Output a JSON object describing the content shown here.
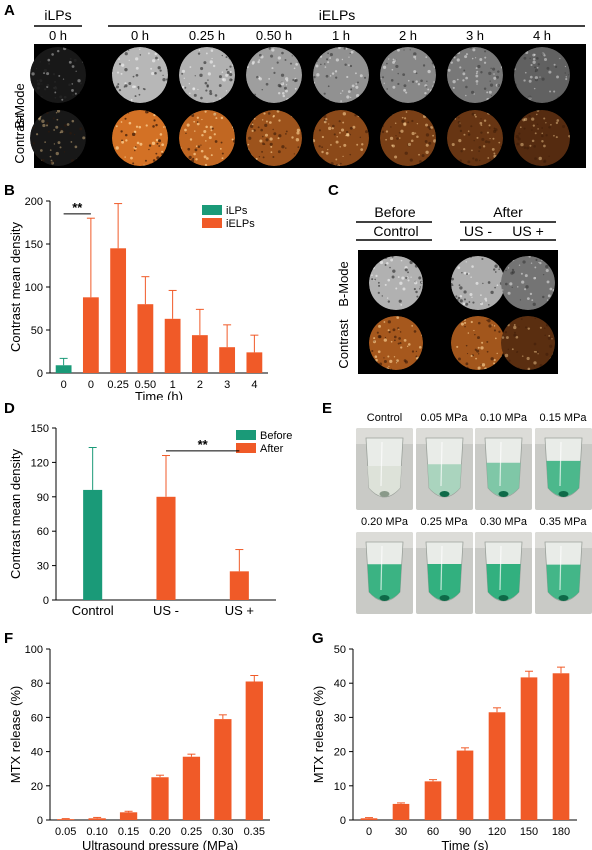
{
  "colors": {
    "green": "#1a9a78",
    "orange": "#f05a28",
    "black": "#000000",
    "mb": "#9a9a9a",
    "cw": "#e8a050",
    "cd": "#7a4218"
  },
  "panels": {
    "a": "A",
    "b": "B",
    "c": "C",
    "d": "D",
    "e": "E",
    "f": "F",
    "g": "G"
  },
  "panel_a": {
    "group_left": "iLPs",
    "group_right": "iELPs",
    "times": [
      "0 h",
      "0 h",
      "0.25 h",
      "0.50 h",
      "1 h",
      "2 h",
      "3 h",
      "4 h"
    ],
    "row_bmode": "B-Mode",
    "row_contrast": "Contrast",
    "bmode_level": [
      0.15,
      0.75,
      0.72,
      0.62,
      0.55,
      0.5,
      0.42,
      0.3
    ],
    "contrast_level": [
      0.15,
      0.95,
      0.85,
      0.65,
      0.55,
      0.45,
      0.35,
      0.25
    ]
  },
  "panel_c": {
    "header_before": "Before",
    "header_after": "After",
    "cols": [
      "Control",
      "US -",
      "US +"
    ],
    "row_bmode": "B-Mode",
    "row_contrast": "Contrast",
    "bmode_level": [
      0.72,
      0.7,
      0.4
    ],
    "contrast_level": [
      0.7,
      0.68,
      0.28
    ]
  },
  "panel_e": {
    "labels_top": [
      "Control",
      "0.05 MPa",
      "0.10 MPa",
      "0.15 MPa"
    ],
    "labels_bottom": [
      "0.20 MPa",
      "0.25 MPa",
      "0.30 MPa",
      "0.35 MPa"
    ],
    "green_level_top": [
      0.0,
      0.3,
      0.55,
      0.85
    ],
    "green_level_bottom": [
      0.95,
      1.0,
      1.0,
      0.9
    ]
  },
  "chart_data": [
    {
      "id": "B",
      "type": "bar",
      "categories": [
        "0",
        "0",
        "0.25",
        "0.50",
        "1",
        "2",
        "3",
        "4"
      ],
      "series": [
        {
          "name": "iLPs",
          "values": [
            9,
            null,
            null,
            null,
            null,
            null,
            null,
            null
          ],
          "errors": [
            8,
            null,
            null,
            null,
            null,
            null,
            null,
            null
          ]
        },
        {
          "name": "iELPs",
          "values": [
            null,
            88,
            145,
            80,
            63,
            44,
            30,
            24
          ],
          "errors": [
            null,
            92,
            52,
            32,
            33,
            30,
            26,
            20
          ]
        }
      ],
      "xlabel": "Time (h)",
      "ylabel": "Contrast mean density",
      "ylim": [
        0,
        200
      ],
      "yticks": [
        0,
        50,
        100,
        150,
        200
      ],
      "legend_position": "top-right",
      "annotations": [
        {
          "text": "**",
          "between": [
            "0",
            "0"
          ]
        }
      ]
    },
    {
      "id": "D",
      "type": "bar",
      "categories": [
        "Control",
        "US -",
        "US +"
      ],
      "series": [
        {
          "name": "Before",
          "values": [
            96,
            null,
            null
          ],
          "errors": [
            37,
            null,
            null
          ]
        },
        {
          "name": "After",
          "values": [
            null,
            90,
            25
          ],
          "errors": [
            null,
            36,
            19
          ]
        }
      ],
      "ylabel": "Contrast mean density",
      "ylim": [
        0,
        150
      ],
      "yticks": [
        0,
        30,
        60,
        90,
        120,
        150
      ],
      "legend_position": "top-right",
      "annotations": [
        {
          "text": "**",
          "between": [
            "US -",
            "US +"
          ]
        }
      ]
    },
    {
      "id": "F",
      "type": "bar",
      "categories": [
        "0.05",
        "0.10",
        "0.15",
        "0.20",
        "0.25",
        "0.30",
        "0.35"
      ],
      "values": [
        0.5,
        1,
        4.5,
        25,
        37,
        59,
        81
      ],
      "errors": [
        0.3,
        0.5,
        0.6,
        1.2,
        1.5,
        2.5,
        3.5
      ],
      "xlabel": "Ultrasound pressure (MPa)",
      "ylabel": "MTX release (%)",
      "ylim": [
        0,
        100
      ],
      "yticks": [
        0,
        20,
        40,
        60,
        80,
        100
      ]
    },
    {
      "id": "G",
      "type": "bar",
      "categories": [
        "0",
        "30",
        "60",
        "90",
        "120",
        "150",
        "180"
      ],
      "values": [
        0.5,
        4.7,
        11.3,
        20.3,
        31.5,
        41.7,
        42.9
      ],
      "errors": [
        0.2,
        0.3,
        0.5,
        0.8,
        1.3,
        1.8,
        1.8
      ],
      "xlabel": "Time (s)",
      "ylabel": "MTX release (%)",
      "ylim": [
        0,
        50
      ],
      "yticks": [
        0,
        10,
        20,
        30,
        40,
        50
      ]
    }
  ]
}
